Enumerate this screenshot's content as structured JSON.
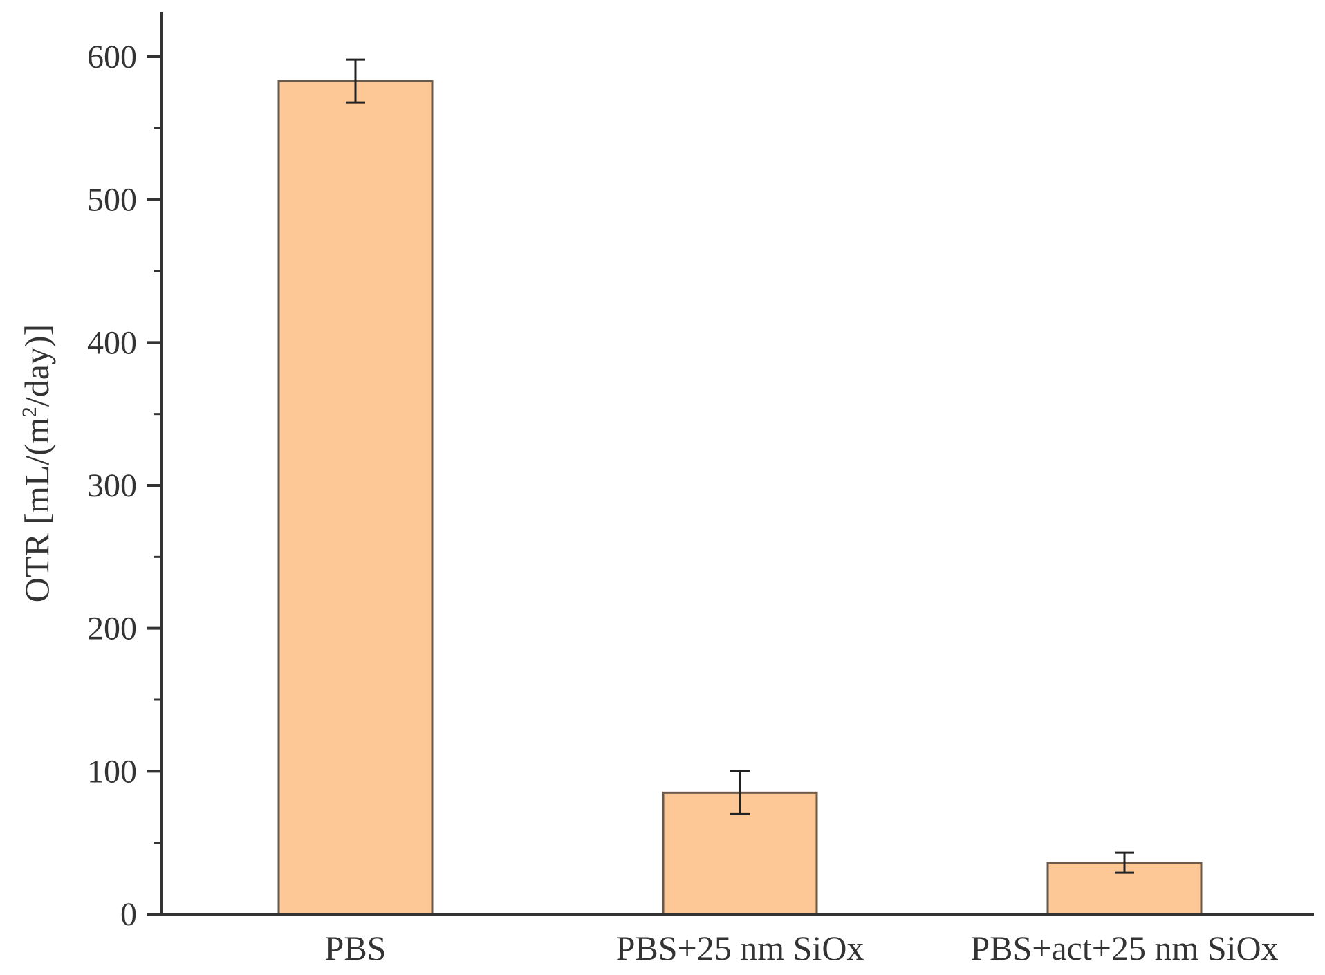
{
  "chart_data": {
    "type": "bar",
    "categories": [
      "PBS",
      "PBS+25 nm SiOx",
      "PBS+act+25 nm SiOx"
    ],
    "values": [
      583,
      85,
      36
    ],
    "errors": [
      15,
      15,
      7
    ],
    "title": "",
    "xlabel": "",
    "ylabel_main": "OTR [mL/(m",
    "ylabel_sup": "2",
    "ylabel_tail": "/day)]",
    "ylim": [
      0,
      600
    ],
    "yticks": [
      0,
      100,
      200,
      300,
      400,
      500,
      600
    ],
    "grid": false,
    "legend": "none",
    "colors": {
      "bar_fill": "#FDC896",
      "bar_stroke": "#6B5A4A",
      "axis": "#333333",
      "error_bar": "#222222"
    }
  }
}
